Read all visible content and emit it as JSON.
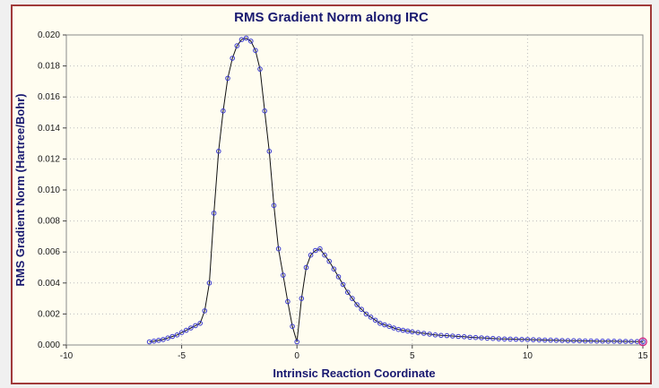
{
  "colors": {
    "window_background": "#f0f0f0",
    "plot_background": "#fffdf0",
    "frame_border": "#a03a3a",
    "title_color": "#191970",
    "grid_color": "#bdbdbd",
    "axis_color": "#8a8a8a",
    "line_color": "#111111",
    "marker_color": "#3a3ad0",
    "highlight_color": "#cc2288"
  },
  "chart_data": {
    "type": "line",
    "title": "RMS Gradient Norm along IRC",
    "xlabel": "Intrinsic Reaction Coordinate",
    "ylabel": "RMS Gradient Norm (Hartree/Bohr)",
    "xlim": [
      -10,
      15
    ],
    "ylim": [
      0.0,
      0.02
    ],
    "xticks": [
      -10,
      -5,
      0,
      5,
      10,
      15
    ],
    "yticks": [
      0.0,
      0.002,
      0.004,
      0.006,
      0.008,
      0.01,
      0.012,
      0.014,
      0.016,
      0.018,
      0.02
    ],
    "grid": true,
    "legend": "none",
    "line_color": "#111111",
    "marker": "open-circle",
    "marker_color": "#3a3ad0",
    "highlight_color": "#cc2288",
    "highlight_note": "last point at IRC = 15 circled in magenta",
    "points": [
      [
        -6.4,
        0.0002
      ],
      [
        -6.2,
        0.00025
      ],
      [
        -6.0,
        0.0003
      ],
      [
        -5.8,
        0.00035
      ],
      [
        -5.6,
        0.00045
      ],
      [
        -5.4,
        0.00055
      ],
      [
        -5.2,
        0.00065
      ],
      [
        -5.0,
        0.0008
      ],
      [
        -4.8,
        0.00095
      ],
      [
        -4.6,
        0.0011
      ],
      [
        -4.4,
        0.00125
      ],
      [
        -4.2,
        0.0014
      ],
      [
        -4.0,
        0.0022
      ],
      [
        -3.8,
        0.004
      ],
      [
        -3.6,
        0.0085
      ],
      [
        -3.4,
        0.0125
      ],
      [
        -3.2,
        0.0151
      ],
      [
        -3.0,
        0.0172
      ],
      [
        -2.8,
        0.0185
      ],
      [
        -2.6,
        0.0193
      ],
      [
        -2.4,
        0.0197
      ],
      [
        -2.2,
        0.0198
      ],
      [
        -2.0,
        0.0196
      ],
      [
        -1.8,
        0.019
      ],
      [
        -1.6,
        0.0178
      ],
      [
        -1.4,
        0.0151
      ],
      [
        -1.2,
        0.0125
      ],
      [
        -1.0,
        0.009
      ],
      [
        -0.8,
        0.0062
      ],
      [
        -0.6,
        0.0045
      ],
      [
        -0.4,
        0.0028
      ],
      [
        -0.2,
        0.0012
      ],
      [
        0.0,
        0.0002
      ],
      [
        0.2,
        0.003
      ],
      [
        0.4,
        0.005
      ],
      [
        0.6,
        0.0058
      ],
      [
        0.8,
        0.0061
      ],
      [
        1.0,
        0.0062
      ],
      [
        1.2,
        0.0058
      ],
      [
        1.4,
        0.0054
      ],
      [
        1.6,
        0.0049
      ],
      [
        1.8,
        0.0044
      ],
      [
        2.0,
        0.0039
      ],
      [
        2.2,
        0.0034
      ],
      [
        2.4,
        0.003
      ],
      [
        2.6,
        0.0026
      ],
      [
        2.8,
        0.0023
      ],
      [
        3.0,
        0.002
      ],
      [
        3.2,
        0.0018
      ],
      [
        3.4,
        0.0016
      ],
      [
        3.6,
        0.0014
      ],
      [
        3.8,
        0.0013
      ],
      [
        4.0,
        0.0012
      ],
      [
        4.2,
        0.0011
      ],
      [
        4.4,
        0.001
      ],
      [
        4.6,
        0.00095
      ],
      [
        4.8,
        0.0009
      ],
      [
        5.0,
        0.00085
      ],
      [
        5.25,
        0.0008
      ],
      [
        5.5,
        0.00075
      ],
      [
        5.75,
        0.0007
      ],
      [
        6.0,
        0.00065
      ],
      [
        6.25,
        0.00062
      ],
      [
        6.5,
        0.0006
      ],
      [
        6.75,
        0.00058
      ],
      [
        7.0,
        0.00055
      ],
      [
        7.25,
        0.00053
      ],
      [
        7.5,
        0.0005
      ],
      [
        7.75,
        0.00048
      ],
      [
        8.0,
        0.00046
      ],
      [
        8.25,
        0.00044
      ],
      [
        8.5,
        0.00042
      ],
      [
        8.75,
        0.0004
      ],
      [
        9.0,
        0.00039
      ],
      [
        9.25,
        0.00038
      ],
      [
        9.5,
        0.00037
      ],
      [
        9.75,
        0.00036
      ],
      [
        10.0,
        0.00035
      ],
      [
        10.25,
        0.00034
      ],
      [
        10.5,
        0.00033
      ],
      [
        10.75,
        0.00032
      ],
      [
        11.0,
        0.00031
      ],
      [
        11.25,
        0.0003
      ],
      [
        11.5,
        0.00029
      ],
      [
        11.75,
        0.00028
      ],
      [
        12.0,
        0.00028
      ],
      [
        12.25,
        0.00027
      ],
      [
        12.5,
        0.00026
      ],
      [
        12.75,
        0.00026
      ],
      [
        13.0,
        0.00025
      ],
      [
        13.25,
        0.00025
      ],
      [
        13.5,
        0.00024
      ],
      [
        13.75,
        0.00024
      ],
      [
        14.0,
        0.00023
      ],
      [
        14.25,
        0.00023
      ],
      [
        14.5,
        0.00022
      ],
      [
        14.75,
        0.00022
      ],
      [
        15.0,
        0.00021
      ]
    ]
  }
}
